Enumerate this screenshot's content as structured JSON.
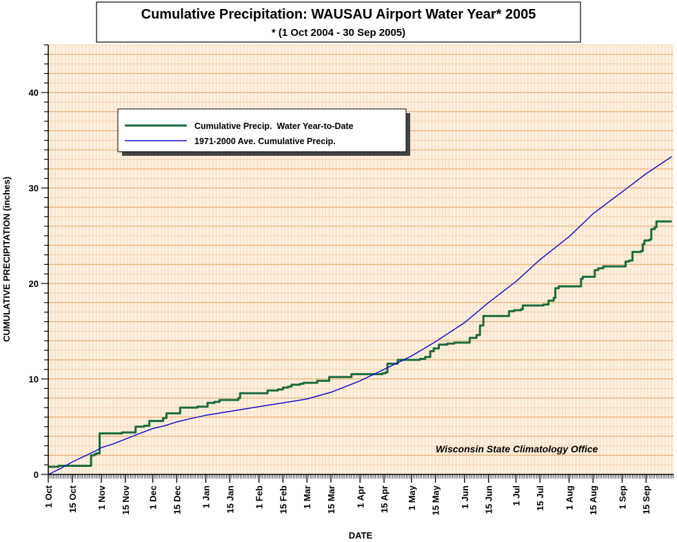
{
  "title": {
    "main": "Cumulative Precipitation: WAUSAU Airport Water Year* 2005",
    "sub": "* (1 Oct 2004 - 30 Sep 2005)"
  },
  "credit": "Wisconsin State Climatology Office",
  "colors": {
    "background": "#FDF0E0",
    "major_grid": "#E89B50",
    "minor_grid": "#F3C9A0",
    "actual_series": "#1A6B3C",
    "average_series": "#1010CC"
  },
  "chart_data": {
    "type": "line",
    "title": "Cumulative Precipitation: WAUSAU Airport Water Year* 2005",
    "subtitle": "* (1 Oct 2004 - 30 Sep 2005)",
    "xlabel": "DATE",
    "ylabel": "CUMULATIVE PRECIPITATION (inches)",
    "ylim": [
      0,
      45
    ],
    "xlim": [
      "2004-10-01",
      "2005-09-30"
    ],
    "yticks": [
      0,
      10,
      20,
      30,
      40
    ],
    "grid": true,
    "legend_position": "top-left",
    "x_tick_labels": [
      {
        "date": "2004-10-01",
        "label": "1 Oct"
      },
      {
        "date": "2004-10-15",
        "label": "15 Oct"
      },
      {
        "date": "2004-11-01",
        "label": "1 Nov"
      },
      {
        "date": "2004-11-15",
        "label": "15 Nov"
      },
      {
        "date": "2004-12-01",
        "label": "1 Dec"
      },
      {
        "date": "2004-12-15",
        "label": "15 Dec"
      },
      {
        "date": "2005-01-01",
        "label": "1 Jan"
      },
      {
        "date": "2005-01-15",
        "label": "15 Jan"
      },
      {
        "date": "2005-02-01",
        "label": "1 Feb"
      },
      {
        "date": "2005-02-15",
        "label": "15 Feb"
      },
      {
        "date": "2005-03-01",
        "label": "1 Mar"
      },
      {
        "date": "2005-03-15",
        "label": "15 Mar"
      },
      {
        "date": "2005-04-01",
        "label": "1 Apr"
      },
      {
        "date": "2005-04-15",
        "label": "15 Apr"
      },
      {
        "date": "2005-05-01",
        "label": "1 May"
      },
      {
        "date": "2005-05-15",
        "label": "15 May"
      },
      {
        "date": "2005-06-01",
        "label": "1 Jun"
      },
      {
        "date": "2005-06-15",
        "label": "15 Jun"
      },
      {
        "date": "2005-07-01",
        "label": "1 Jul"
      },
      {
        "date": "2005-07-15",
        "label": "15 Jul"
      },
      {
        "date": "2005-08-01",
        "label": "1 Aug"
      },
      {
        "date": "2005-08-15",
        "label": "15 Aug"
      },
      {
        "date": "2005-09-01",
        "label": "1 Sep"
      },
      {
        "date": "2005-09-15",
        "label": "15 Sep"
      }
    ],
    "series": [
      {
        "name": "Cumulative Precip.  Water Year-to-Date",
        "style": "step",
        "color": "#1A6B3C",
        "points": [
          [
            "2004-10-01",
            0.8
          ],
          [
            "2004-10-06",
            0.8
          ],
          [
            "2004-10-07",
            0.9
          ],
          [
            "2004-10-25",
            0.9
          ],
          [
            "2004-10-26",
            2.0
          ],
          [
            "2004-10-28",
            2.1
          ],
          [
            "2004-10-29",
            2.2
          ],
          [
            "2004-10-31",
            4.3
          ],
          [
            "2004-11-12",
            4.3
          ],
          [
            "2004-11-13",
            4.4
          ],
          [
            "2004-11-20",
            4.4
          ],
          [
            "2004-11-21",
            5.0
          ],
          [
            "2004-11-26",
            5.1
          ],
          [
            "2004-11-29",
            5.6
          ],
          [
            "2004-12-06",
            5.6
          ],
          [
            "2004-12-07",
            5.9
          ],
          [
            "2004-12-09",
            6.4
          ],
          [
            "2004-12-16",
            6.4
          ],
          [
            "2004-12-17",
            7.0
          ],
          [
            "2004-12-26",
            7.0
          ],
          [
            "2004-12-27",
            7.1
          ],
          [
            "2005-01-02",
            7.5
          ],
          [
            "2005-01-06",
            7.6
          ],
          [
            "2005-01-09",
            7.8
          ],
          [
            "2005-01-19",
            7.8
          ],
          [
            "2005-01-20",
            8.0
          ],
          [
            "2005-01-21",
            8.5
          ],
          [
            "2005-02-05",
            8.5
          ],
          [
            "2005-02-06",
            8.8
          ],
          [
            "2005-02-12",
            8.9
          ],
          [
            "2005-02-15",
            9.1
          ],
          [
            "2005-02-18",
            9.2
          ],
          [
            "2005-02-20",
            9.4
          ],
          [
            "2005-02-25",
            9.5
          ],
          [
            "2005-02-27",
            9.6
          ],
          [
            "2005-03-06",
            9.6
          ],
          [
            "2005-03-07",
            9.8
          ],
          [
            "2005-03-13",
            9.8
          ],
          [
            "2005-03-14",
            10.2
          ],
          [
            "2005-03-26",
            10.2
          ],
          [
            "2005-03-27",
            10.5
          ],
          [
            "2005-04-13",
            10.5
          ],
          [
            "2005-04-14",
            10.6
          ],
          [
            "2005-04-16",
            10.7
          ],
          [
            "2005-04-17",
            11.6
          ],
          [
            "2005-04-22",
            11.6
          ],
          [
            "2005-04-23",
            12.0
          ],
          [
            "2005-05-03",
            12.0
          ],
          [
            "2005-05-06",
            12.1
          ],
          [
            "2005-05-09",
            12.3
          ],
          [
            "2005-05-12",
            12.9
          ],
          [
            "2005-05-14",
            13.2
          ],
          [
            "2005-05-17",
            13.6
          ],
          [
            "2005-05-22",
            13.7
          ],
          [
            "2005-05-26",
            13.8
          ],
          [
            "2005-06-03",
            13.8
          ],
          [
            "2005-06-04",
            14.3
          ],
          [
            "2005-06-08",
            14.6
          ],
          [
            "2005-06-10",
            15.6
          ],
          [
            "2005-06-12",
            16.6
          ],
          [
            "2005-06-26",
            16.6
          ],
          [
            "2005-06-27",
            17.1
          ],
          [
            "2005-06-30",
            17.2
          ],
          [
            "2005-07-04",
            17.3
          ],
          [
            "2005-07-05",
            17.7
          ],
          [
            "2005-07-17",
            17.8
          ],
          [
            "2005-07-20",
            18.2
          ],
          [
            "2005-07-23",
            18.5
          ],
          [
            "2005-07-24",
            19.5
          ],
          [
            "2005-07-26",
            19.7
          ],
          [
            "2005-08-07",
            19.7
          ],
          [
            "2005-08-08",
            20.5
          ],
          [
            "2005-08-09",
            20.7
          ],
          [
            "2005-08-15",
            20.7
          ],
          [
            "2005-08-16",
            21.4
          ],
          [
            "2005-08-18",
            21.6
          ],
          [
            "2005-08-21",
            21.8
          ],
          [
            "2005-09-01",
            21.8
          ],
          [
            "2005-09-03",
            22.3
          ],
          [
            "2005-09-05",
            22.4
          ],
          [
            "2005-09-07",
            23.3
          ],
          [
            "2005-09-10",
            23.3
          ],
          [
            "2005-09-12",
            23.4
          ],
          [
            "2005-09-13",
            24.1
          ],
          [
            "2005-09-14",
            24.5
          ],
          [
            "2005-09-17",
            24.6
          ],
          [
            "2005-09-18",
            25.7
          ],
          [
            "2005-09-20",
            25.9
          ],
          [
            "2005-09-21",
            26.5
          ],
          [
            "2005-09-30",
            26.5
          ]
        ]
      },
      {
        "name": "1971-2000 Ave. Cumulative Precip.",
        "style": "line",
        "color": "#1010CC",
        "points": [
          [
            "2004-10-01",
            0.0
          ],
          [
            "2004-10-08",
            0.6
          ],
          [
            "2004-10-15",
            1.3
          ],
          [
            "2004-10-22",
            1.9
          ],
          [
            "2004-10-29",
            2.5
          ],
          [
            "2004-11-01",
            2.8
          ],
          [
            "2004-11-08",
            3.2
          ],
          [
            "2004-11-15",
            3.7
          ],
          [
            "2004-11-22",
            4.2
          ],
          [
            "2004-12-01",
            4.8
          ],
          [
            "2004-12-08",
            5.1
          ],
          [
            "2004-12-15",
            5.5
          ],
          [
            "2004-12-22",
            5.8
          ],
          [
            "2005-01-01",
            6.2
          ],
          [
            "2005-01-15",
            6.6
          ],
          [
            "2005-02-01",
            7.1
          ],
          [
            "2005-02-15",
            7.5
          ],
          [
            "2005-03-01",
            7.9
          ],
          [
            "2005-03-15",
            8.6
          ],
          [
            "2005-04-01",
            9.8
          ],
          [
            "2005-04-15",
            11.0
          ],
          [
            "2005-05-01",
            12.4
          ],
          [
            "2005-05-15",
            13.9
          ],
          [
            "2005-06-01",
            15.9
          ],
          [
            "2005-06-15",
            18.0
          ],
          [
            "2005-07-01",
            20.2
          ],
          [
            "2005-07-15",
            22.5
          ],
          [
            "2005-08-01",
            24.9
          ],
          [
            "2005-08-15",
            27.3
          ],
          [
            "2005-09-01",
            29.6
          ],
          [
            "2005-09-15",
            31.5
          ],
          [
            "2005-09-30",
            33.3
          ]
        ]
      }
    ]
  }
}
